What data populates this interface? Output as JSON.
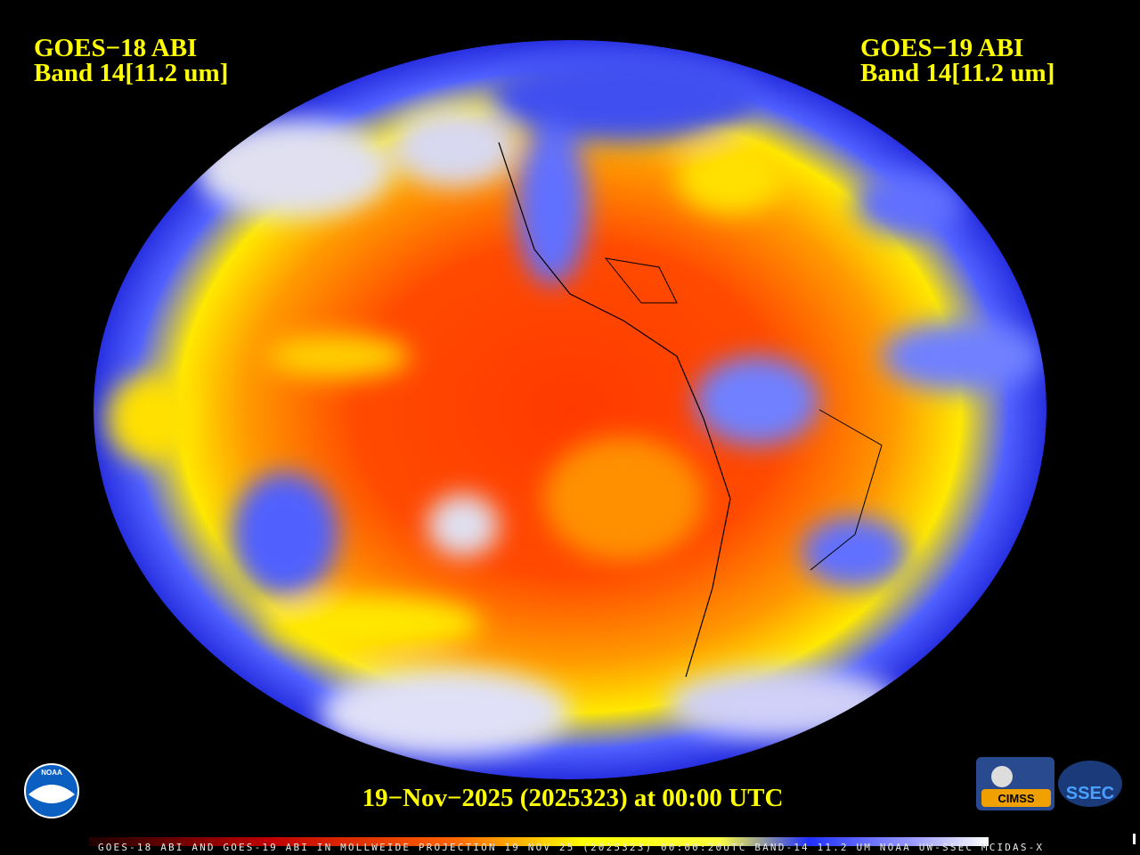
{
  "header": {
    "left": {
      "title": "GOES−18 ABI",
      "band": "Band 14[11.2 um]"
    },
    "right": {
      "title": "GOES−19 ABI",
      "band": "Band 14[11.2 um]"
    }
  },
  "timestamp": "19−Nov−2025 (2025323) at 00:00 UTC",
  "footer": "GOES-18 ABI AND GOES-19 ABI IN MOLLWEIDE PROJECTION 19 NOV 25 (2025323) 00:00:20UTC BAND-14 11.2 UM NOAA UW-SSEC MCIDAS-X",
  "logos": {
    "noaa": "NOAA",
    "cimss": "CIMSS",
    "ssec": "SSEC"
  }
}
